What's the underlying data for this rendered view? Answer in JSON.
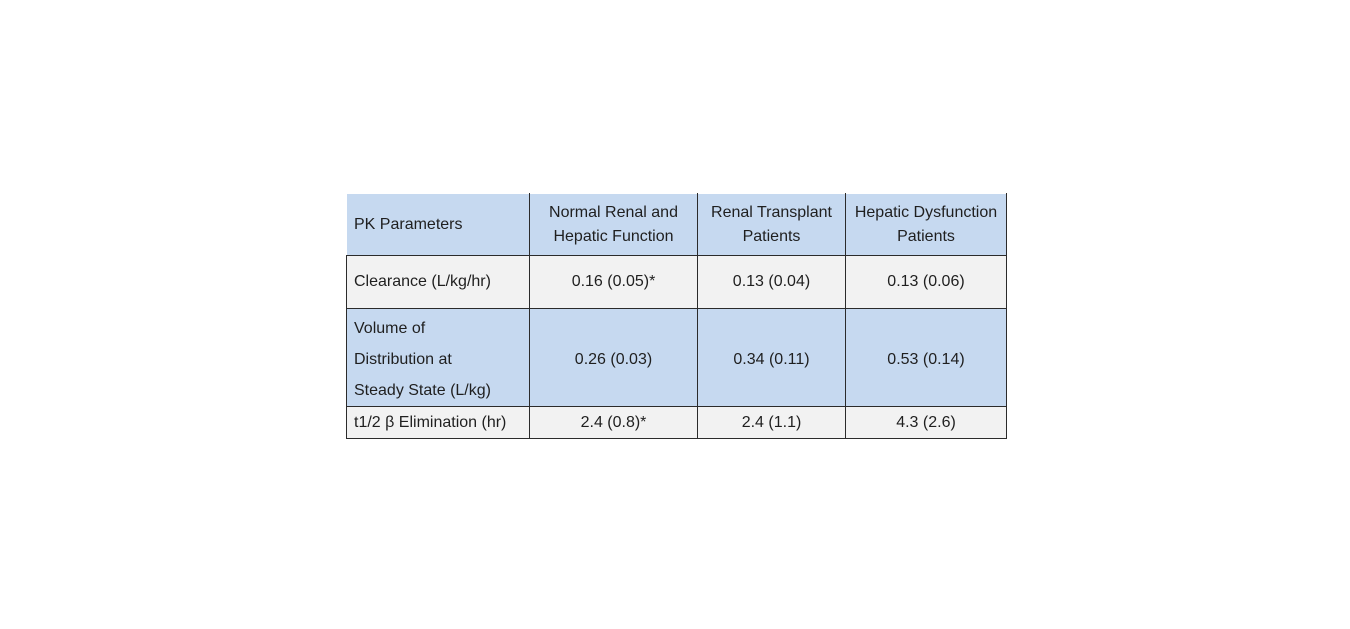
{
  "colors": {
    "page_background": "#ffffff",
    "header_fill": "#c6d9f0",
    "blue_row_fill": "#c6d9f0",
    "gray_row_fill": "#f2f2f2",
    "border": "#2b2b2b",
    "text": "#1f1f1f"
  },
  "table": {
    "headers": [
      "PK Parameters",
      "Normal Renal and Hepatic Function",
      "Renal Transplant Patients",
      "Hepatic Dysfunction Patients"
    ],
    "rows": [
      {
        "parameter": "Clearance (L/kg/hr)",
        "values": [
          "0.16 (0.05)*",
          "0.13 (0.04)",
          "0.13 (0.06)"
        ]
      },
      {
        "parameter": "Volume of Distribution at Steady State (L/kg)",
        "parameter_lines": [
          "Volume of",
          "Distribution at",
          "Steady State (L/kg)"
        ],
        "values": [
          "0.26 (0.03)",
          "0.34 (0.11)",
          "0.53 (0.14)"
        ]
      },
      {
        "parameter": "t1/2 β Elimination (hr)",
        "values": [
          "2.4 (0.8)*",
          "2.4 (1.1)",
          "4.3 (2.6)"
        ]
      }
    ]
  }
}
